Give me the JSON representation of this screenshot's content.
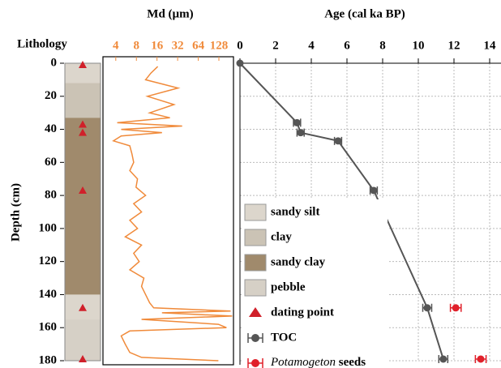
{
  "chart_data": [
    {
      "type": "column",
      "title": "Lithology",
      "ylabel": "Depth (cm)",
      "ylim": [
        0,
        180
      ],
      "yticks": [
        0,
        20,
        40,
        60,
        80,
        100,
        120,
        140,
        160,
        180
      ],
      "lithology_types": [
        {
          "name": "sandy silt",
          "color": "#dcd6cc"
        },
        {
          "name": "clay",
          "color": "#cbc3b5"
        },
        {
          "name": "sandy clay",
          "color": "#a08a6c"
        },
        {
          "name": "pebble",
          "color": "#d6d0c6"
        }
      ],
      "layers": [
        {
          "lithology": "sandy silt",
          "top": 0,
          "bottom": 12
        },
        {
          "lithology": "clay",
          "top": 12,
          "bottom": 33
        },
        {
          "lithology": "sandy clay",
          "top": 33,
          "bottom": 140
        },
        {
          "lithology": "sandy silt",
          "top": 140,
          "bottom": 155
        },
        {
          "lithology": "pebble",
          "top": 155,
          "bottom": 180
        }
      ],
      "dating_points": {
        "name": "dating point",
        "color": "#d0202a",
        "depths": [
          1,
          37,
          42,
          77,
          148,
          179
        ]
      }
    },
    {
      "type": "line",
      "title": "Md (µm)",
      "log": true,
      "color": "#f08a3a",
      "xlim": [
        2.6,
        209
      ],
      "xticks": [
        4,
        8,
        16,
        32,
        64,
        128
      ],
      "ylim": [
        0,
        180
      ],
      "x": [
        16.4,
        13,
        10.9,
        32.4,
        11.6,
        28.3,
        12.5,
        24.7,
        4.2,
        37.2,
        4.8,
        18.9,
        4.8,
        3.7,
        6.4,
        6.9,
        7.3,
        6.4,
        8.3,
        7.9,
        10.9,
        7.3,
        9.5,
        6.4,
        8.3,
        5.5,
        9.5,
        7.3,
        8.8,
        6.4,
        10.3,
        9.5,
        10.9,
        12.5,
        14.3,
        190,
        18.9,
        200,
        9.5,
        126,
        165,
        6.4,
        4.8,
        5.5,
        6.4,
        9.5,
        126
      ],
      "y": [
        2,
        6,
        10,
        15,
        20,
        25,
        30,
        33,
        36,
        38,
        40,
        42,
        44,
        47,
        50,
        55,
        60,
        65,
        70,
        75,
        80,
        85,
        90,
        95,
        100,
        105,
        110,
        115,
        120,
        125,
        130,
        135,
        140,
        145,
        148,
        150,
        151,
        153,
        155,
        158,
        160,
        162,
        165,
        170,
        175,
        178,
        180
      ]
    },
    {
      "type": "scatter",
      "title": "Age (cal ka BP)",
      "grid": true,
      "xlim": [
        0,
        14
      ],
      "xticks": [
        0,
        2,
        4,
        6,
        8,
        10,
        12,
        14
      ],
      "ylim": [
        0,
        180
      ],
      "series": [
        {
          "name": "TOC",
          "color": "#555555",
          "connect": true,
          "x": [
            0,
            3.2,
            3.4,
            5.5,
            7.5,
            10.5,
            11.4
          ],
          "y": [
            0,
            36,
            42,
            47,
            77,
            148,
            179
          ],
          "errors": [
            0,
            0.2,
            0.2,
            0.2,
            0.2,
            0.25,
            0.25
          ]
        },
        {
          "name": "Potamogeton seeds",
          "color": "#e0202a",
          "connect": false,
          "x": [
            12.1,
            13.5
          ],
          "y": [
            148,
            179
          ],
          "errors": [
            0.3,
            0.3
          ]
        }
      ]
    }
  ]
}
